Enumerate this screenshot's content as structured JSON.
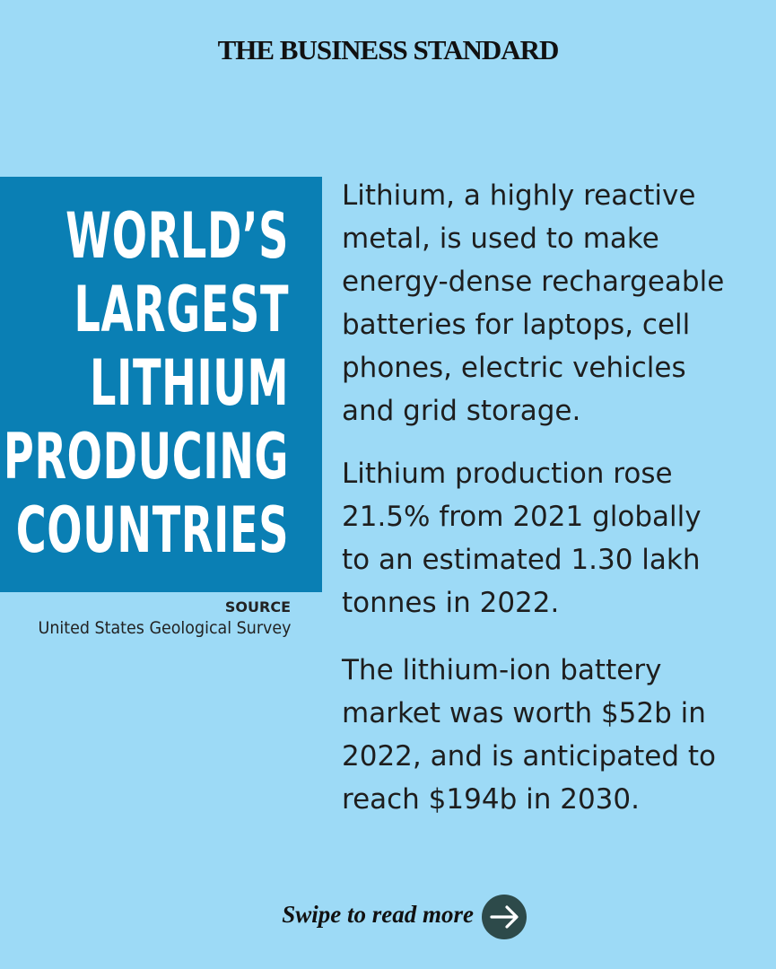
{
  "header": {
    "brand": "THE BUSINESS STANDARD"
  },
  "title": {
    "lines": [
      "WORLD’S",
      "LARGEST",
      "LITHIUM",
      "PRODUCING",
      "COUNTRIES"
    ]
  },
  "source": {
    "label": "SOURCE",
    "text": "United States Geological Survey"
  },
  "paragraphs": [
    [
      "Lithium, a highly reactive",
      "metal, is used to make",
      "energy-dense rechargeable",
      "batteries for laptops, cell",
      "phones, electric vehicles",
      "and grid storage."
    ],
    [
      "Lithium production rose",
      "21.5% from 2021 globally",
      "to an estimated 1.30 lakh",
      "tonnes in 2022."
    ],
    [
      "The lithium-ion battery",
      "market was worth $52b in",
      "2022, and is anticipated to",
      "reach $194b in 2030."
    ]
  ],
  "footer": {
    "cta": "Swipe to read more"
  }
}
